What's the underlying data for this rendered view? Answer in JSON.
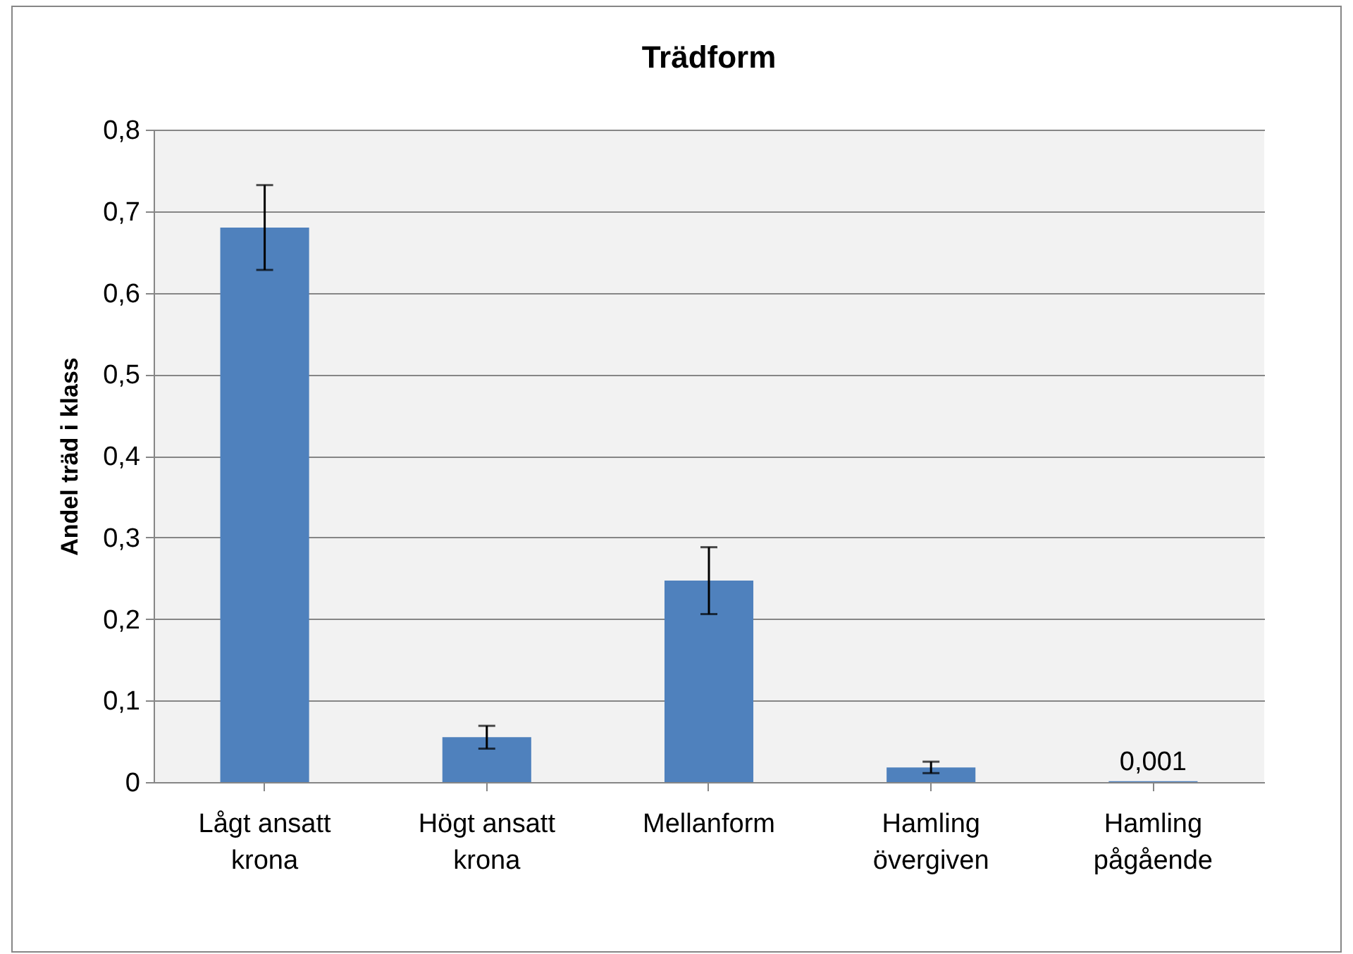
{
  "chart_data": {
    "type": "bar",
    "title": "Trädform",
    "ylabel": "Andel träd i klass",
    "categories": [
      "Lågt ansatt krona",
      "Högt ansatt krona",
      "Mellanform",
      "Hamling övergiven",
      "Hamling pågående"
    ],
    "values": [
      0.68,
      0.055,
      0.247,
      0.018,
      0.001
    ],
    "errors": [
      0.052,
      0.014,
      0.041,
      0.007,
      null
    ],
    "value_labels": [
      null,
      null,
      null,
      null,
      "0,001"
    ],
    "color": "#4f81bd",
    "ylim": [
      0,
      0.8
    ],
    "yticks": [
      0,
      {
        "value": 0.1,
        "label": "0,1"
      },
      {
        "value": 0.2,
        "label": "0,2"
      },
      {
        "value": 0.3,
        "label": "0,3"
      },
      {
        "value": 0.4,
        "label": "0,4"
      },
      {
        "value": 0.5,
        "label": "0,5"
      },
      {
        "value": 0.6,
        "label": "0,6"
      },
      {
        "value": 0.7,
        "label": "0,7"
      },
      {
        "value": 0.8,
        "label": "0,8"
      }
    ],
    "grid": "y"
  }
}
